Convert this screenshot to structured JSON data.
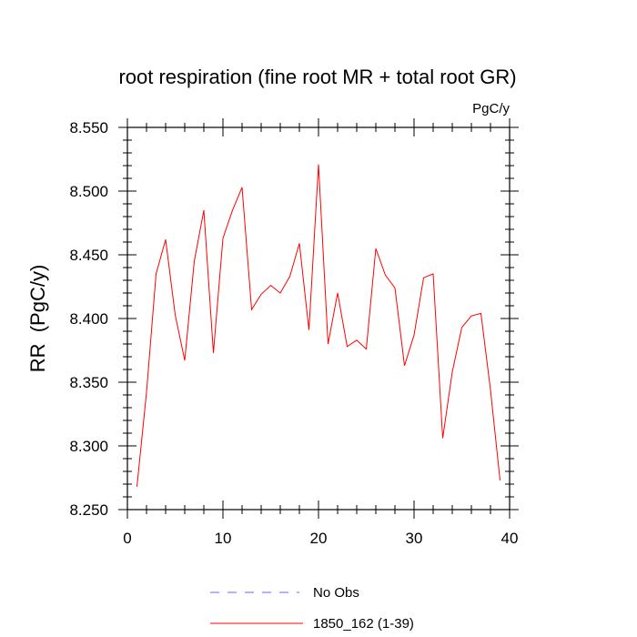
{
  "chart_data": {
    "type": "line",
    "title": "root respiration (fine root MR + total root GR)",
    "units": "PgC/y",
    "xlabel": "",
    "ylabel": "RR  (PgC/y)",
    "xlim": [
      0,
      40
    ],
    "ylim": [
      8.25,
      8.55
    ],
    "xticks": [
      0,
      10,
      20,
      30,
      40
    ],
    "xtick_labels": [
      "0",
      "10",
      "20",
      "30",
      "40"
    ],
    "yticks": [
      8.25,
      8.3,
      8.35,
      8.4,
      8.45,
      8.5,
      8.55
    ],
    "ytick_labels": [
      "8.250",
      "8.300",
      "8.350",
      "8.400",
      "8.450",
      "8.500",
      "8.550"
    ],
    "grid": false,
    "legend_position": "bottom-center",
    "legend": [
      {
        "label": "No Obs",
        "color": "#6666ff",
        "style": "dashed"
      },
      {
        "label": "1850_162 (1-39)",
        "color": "#ff0000",
        "style": "solid"
      }
    ],
    "series": [
      {
        "name": "1850_162 (1-39)",
        "color": "#ff0000",
        "x": [
          1,
          2,
          3,
          4,
          5,
          6,
          7,
          8,
          9,
          10,
          11,
          12,
          13,
          14,
          15,
          16,
          17,
          18,
          19,
          20,
          21,
          22,
          23,
          24,
          25,
          26,
          27,
          28,
          29,
          30,
          31,
          32,
          33,
          34,
          35,
          36,
          37,
          38,
          39
        ],
        "values": [
          8.268,
          8.342,
          8.435,
          8.462,
          8.403,
          8.367,
          8.445,
          8.485,
          8.373,
          8.463,
          8.485,
          8.503,
          8.407,
          8.419,
          8.426,
          8.42,
          8.433,
          8.459,
          8.391,
          8.521,
          8.38,
          8.42,
          8.378,
          8.383,
          8.376,
          8.455,
          8.434,
          8.424,
          8.363,
          8.387,
          8.432,
          8.435,
          8.306,
          8.358,
          8.393,
          8.402,
          8.404,
          8.344,
          8.273
        ]
      }
    ]
  }
}
